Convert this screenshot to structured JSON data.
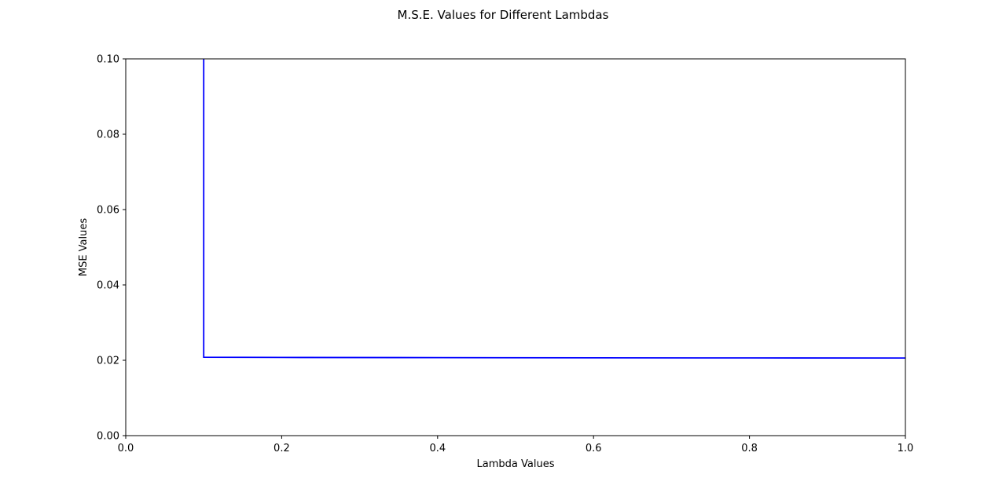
{
  "chart_data": {
    "type": "line",
    "title": "M.S.E. Values for Different Lambdas",
    "xlabel": "Lambda Values",
    "ylabel": "MSE Values",
    "xlim": [
      0.0,
      1.0
    ],
    "ylim": [
      0.0,
      0.1
    ],
    "xticks": [
      "0.0",
      "0.2",
      "0.4",
      "0.6",
      "0.8",
      "1.0"
    ],
    "yticks": [
      "0.00",
      "0.02",
      "0.04",
      "0.06",
      "0.08",
      "0.10"
    ],
    "grid": false,
    "series": [
      {
        "color": "#0000ff",
        "x": [
          0.1,
          0.1,
          0.2,
          0.4,
          0.6,
          0.8,
          1.0
        ],
        "y": [
          0.1,
          0.0208,
          0.02075,
          0.0207,
          0.02065,
          0.02062,
          0.0206
        ]
      }
    ]
  }
}
